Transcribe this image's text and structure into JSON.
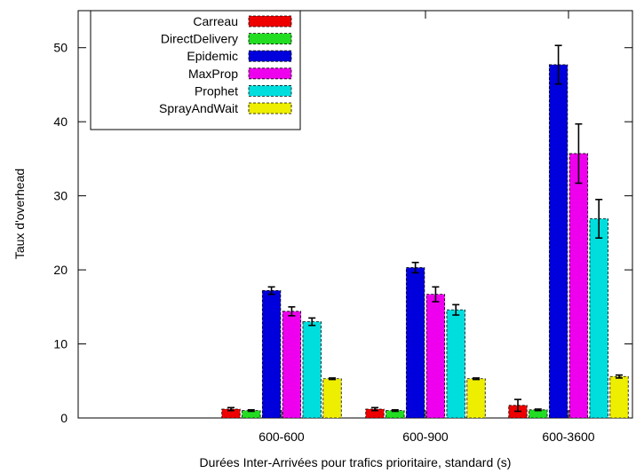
{
  "chart_data": {
    "type": "bar",
    "xlabel": "Durées Inter-Arrivées pour trafics prioritaire, standard (s)",
    "ylabel": "Taux d'overhead",
    "ylim": [
      0,
      55
    ],
    "yticks": [
      0,
      10,
      20,
      30,
      40,
      50
    ],
    "categories": [
      "600-600",
      "600-900",
      "600-3600"
    ],
    "legend_position": "top-left",
    "series": [
      {
        "name": "Carreau",
        "color": "#ee0000",
        "values": [
          1.2,
          1.2,
          1.7
        ],
        "errors": [
          0.2,
          0.2,
          0.8
        ]
      },
      {
        "name": "DirectDelivery",
        "color": "#22dd22",
        "values": [
          1.0,
          1.0,
          1.1
        ],
        "errors": [
          0.1,
          0.1,
          0.1
        ]
      },
      {
        "name": "Epidemic",
        "color": "#0000dd",
        "values": [
          17.2,
          20.3,
          47.7
        ],
        "errors": [
          0.5,
          0.7,
          2.6
        ]
      },
      {
        "name": "MaxProp",
        "color": "#ee00ee",
        "values": [
          14.4,
          16.7,
          35.7
        ],
        "errors": [
          0.6,
          1.0,
          4.0
        ]
      },
      {
        "name": "Prophet",
        "color": "#00dddd",
        "values": [
          13.0,
          14.6,
          26.9
        ],
        "errors": [
          0.5,
          0.7,
          2.6
        ]
      },
      {
        "name": "SprayAndWait",
        "color": "#eeee00",
        "values": [
          5.3,
          5.3,
          5.6
        ],
        "errors": [
          0.1,
          0.1,
          0.2
        ]
      }
    ]
  }
}
